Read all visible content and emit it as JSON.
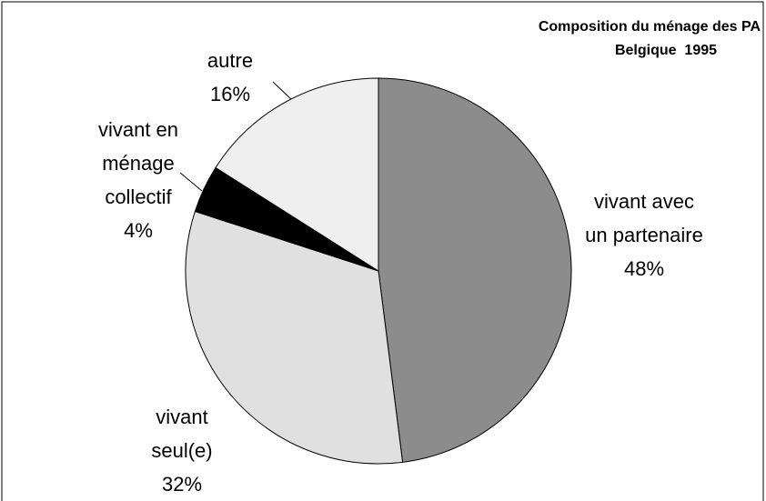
{
  "chart_data": {
    "type": "pie",
    "title": "Composition du ménage des PA",
    "subtitle": "Belgique  1995",
    "categories": [
      "vivant avec un partenaire",
      "vivant seul(e)",
      "vivant en ménage collectif",
      "autre"
    ],
    "values": [
      48,
      32,
      4,
      16
    ],
    "value_labels": [
      "48%",
      "32%",
      "4%",
      "16%"
    ],
    "colors": [
      "#8c8c8c",
      "#e0e0e0",
      "#000000",
      "#efefef"
    ]
  }
}
